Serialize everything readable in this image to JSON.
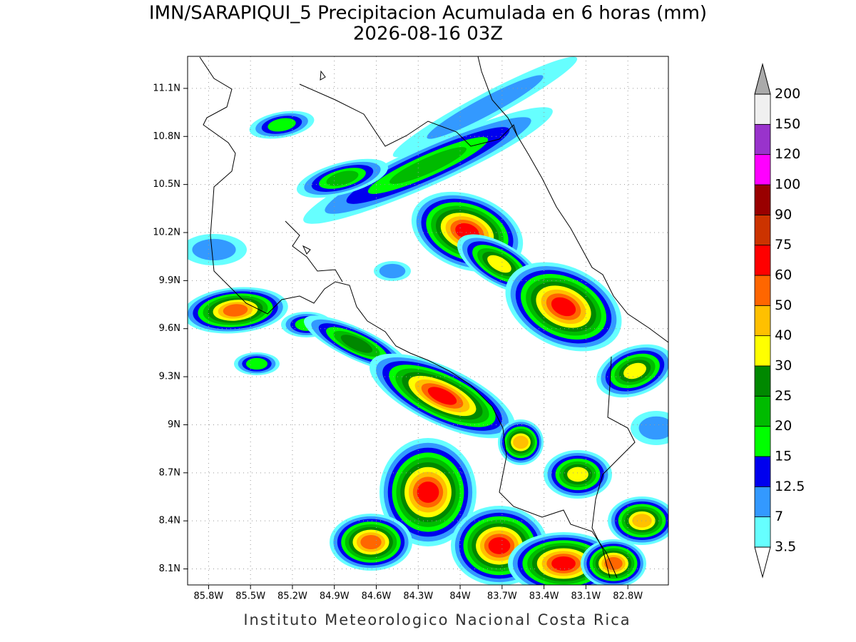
{
  "map": {
    "title": "IMN/SARAPIQUI_5 Precipitacion Acumulada en 6 horas (mm)",
    "subtitle": "2026-08-16 03Z",
    "footer": "Instituto Meteorologico Nacional Costa Rica",
    "xlim": [
      -85.95,
      -82.51
    ],
    "ylim": [
      8.0,
      11.3
    ],
    "xticks": [
      {
        "value": -85.8,
        "label": "85.8W"
      },
      {
        "value": -85.5,
        "label": "85.5W"
      },
      {
        "value": -85.2,
        "label": "85.2W"
      },
      {
        "value": -84.9,
        "label": "84.9W"
      },
      {
        "value": -84.6,
        "label": "84.6W"
      },
      {
        "value": -84.3,
        "label": "84.3W"
      },
      {
        "value": -84.0,
        "label": "84W"
      },
      {
        "value": -83.7,
        "label": "83.7W"
      },
      {
        "value": -83.4,
        "label": "83.4W"
      },
      {
        "value": -83.1,
        "label": "83.1W"
      },
      {
        "value": -82.8,
        "label": "82.8W"
      }
    ],
    "yticks": [
      {
        "value": 8.1,
        "label": "8.1N"
      },
      {
        "value": 8.4,
        "label": "8.4N"
      },
      {
        "value": 8.7,
        "label": "8.7N"
      },
      {
        "value": 9.0,
        "label": "9N"
      },
      {
        "value": 9.3,
        "label": "9.3N"
      },
      {
        "value": 9.6,
        "label": "9.6N"
      },
      {
        "value": 9.9,
        "label": "9.9N"
      },
      {
        "value": 10.2,
        "label": "10.2N"
      },
      {
        "value": 10.5,
        "label": "10.5N"
      },
      {
        "value": 10.8,
        "label": "10.8N"
      },
      {
        "value": 11.1,
        "label": "11.1N"
      }
    ],
    "grid": true,
    "colorbar": {
      "levels": [
        3.5,
        7,
        12.5,
        15,
        20,
        25,
        30,
        40,
        50,
        60,
        75,
        90,
        100,
        120,
        150,
        200
      ],
      "colors": [
        "#66ffff",
        "#3399ff",
        "#0000ee",
        "#00ff00",
        "#00bb00",
        "#008800",
        "#ffff00",
        "#ffc000",
        "#ff6600",
        "#ff0000",
        "#cc3300",
        "#990000",
        "#ff00ff",
        "#9933cc",
        "#f0f0f0"
      ],
      "over_color": "#aaaaaa",
      "under_color": "#ffffff"
    }
  }
}
